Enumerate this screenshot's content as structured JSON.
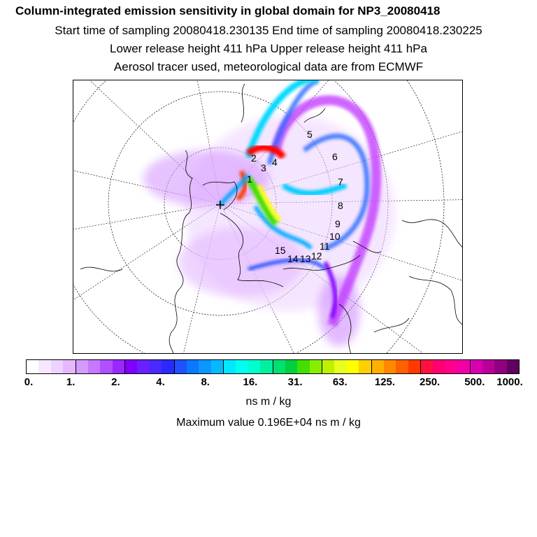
{
  "header": {
    "title": "Column-integrated emission sensitivity in global domain for NP3_20080418",
    "line2": "Start time of sampling 20080418.230135     End time of sampling 20080418.230225",
    "line3": "Lower release height  411 hPa        Upper release height  411 hPa",
    "line4": "Aerosol tracer used, meteorological data are from ECMWF"
  },
  "map": {
    "trajectory_labels": [
      "1",
      "2",
      "3",
      "4",
      "5",
      "6",
      "7",
      "8",
      "9",
      "10",
      "11",
      "12",
      "13",
      "14",
      "15"
    ],
    "plume_colors": [
      "#ff00ff",
      "#aa00ff",
      "#3030ff",
      "#00aaff",
      "#00ffff",
      "#00ff88",
      "#ffff00",
      "#ff6600",
      "#ff0000"
    ]
  },
  "colorbar": {
    "colors": [
      "#ffffff",
      "#f6e8ff",
      "#eed2ff",
      "#e4b8ff",
      "#d69aff",
      "#c678ff",
      "#b050ff",
      "#9a28ff",
      "#8000ff",
      "#6a20ff",
      "#4a28ff",
      "#2a2aff",
      "#2050ff",
      "#0a78ff",
      "#0a98ff",
      "#08b8ff",
      "#00e8ff",
      "#00ffee",
      "#00ffcc",
      "#00f0a0",
      "#00e070",
      "#00d040",
      "#40e000",
      "#88ee00",
      "#c0f000",
      "#e8ff20",
      "#ffff00",
      "#ffd000",
      "#ffb000",
      "#ff8800",
      "#ff6000",
      "#ff3a00",
      "#ff1040",
      "#ff0070",
      "#ff0090",
      "#f000a8",
      "#d800b0",
      "#b80098",
      "#900080",
      "#600060"
    ],
    "tick_labels": [
      "0.",
      "1.",
      "2.",
      "4.",
      "8.",
      "16.",
      "31.",
      "63.",
      "125.",
      "250.",
      "500.",
      "1000."
    ],
    "unit": "ns m / kg"
  },
  "footer": {
    "max_value": "Maximum value  0.196E+04 ns m / kg"
  }
}
